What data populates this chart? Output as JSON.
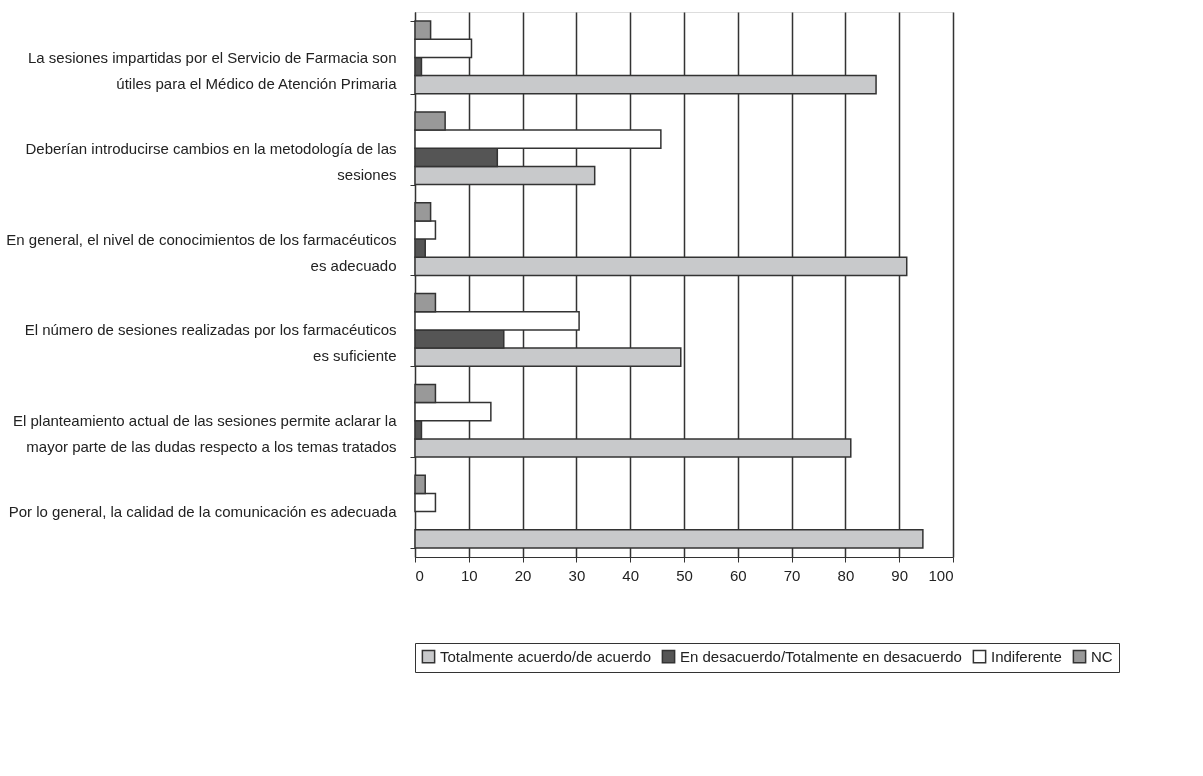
{
  "chart_data": {
    "type": "bar",
    "orientation": "horizontal",
    "categories": [
      "La sesiones impartidas por el Servicio de Farmacia son\nútiles para el Médico de Atención Primaria",
      "Deberían introducirse cambios en la  metodología de las\nsesiones",
      "En general, el nivel de conocimientos de los farmacéuticos\nes adecuado",
      "El número de sesiones realizadas por los farmacéuticos\nes suficiente",
      "El planteamiento actual de las sesiones permite aclarar la\nmayor parte de las dudas respecto a los temas tratados",
      "Por lo general, la calidad de la comunicación es adecuada"
    ],
    "series": [
      {
        "name": "Totalmente acuerdo/de acuerdo",
        "color": "#c8c9cb",
        "values": [
          85.7,
          33.4,
          91.4,
          49.4,
          81,
          94.4
        ]
      },
      {
        "name": "En desacuerdo/Totalmente en desacuerdo",
        "color": "#555555",
        "values": [
          1.2,
          15.3,
          1.9,
          16.5,
          1.2,
          null
        ]
      },
      {
        "name": "Indiferente",
        "color": "#ffffff",
        "values": [
          10.5,
          45.7,
          3.8,
          30.5,
          14.1,
          3.8
        ]
      },
      {
        "name": "NC",
        "color": "#999999",
        "values": [
          2.9,
          5.6,
          2.9,
          3.8,
          3.8,
          1.9
        ]
      }
    ],
    "xlim": [
      0,
      100
    ],
    "xticks": [
      0,
      10,
      20,
      30,
      40,
      50,
      60,
      70,
      80,
      90,
      100
    ],
    "grid": "x",
    "legend": "bottom"
  }
}
